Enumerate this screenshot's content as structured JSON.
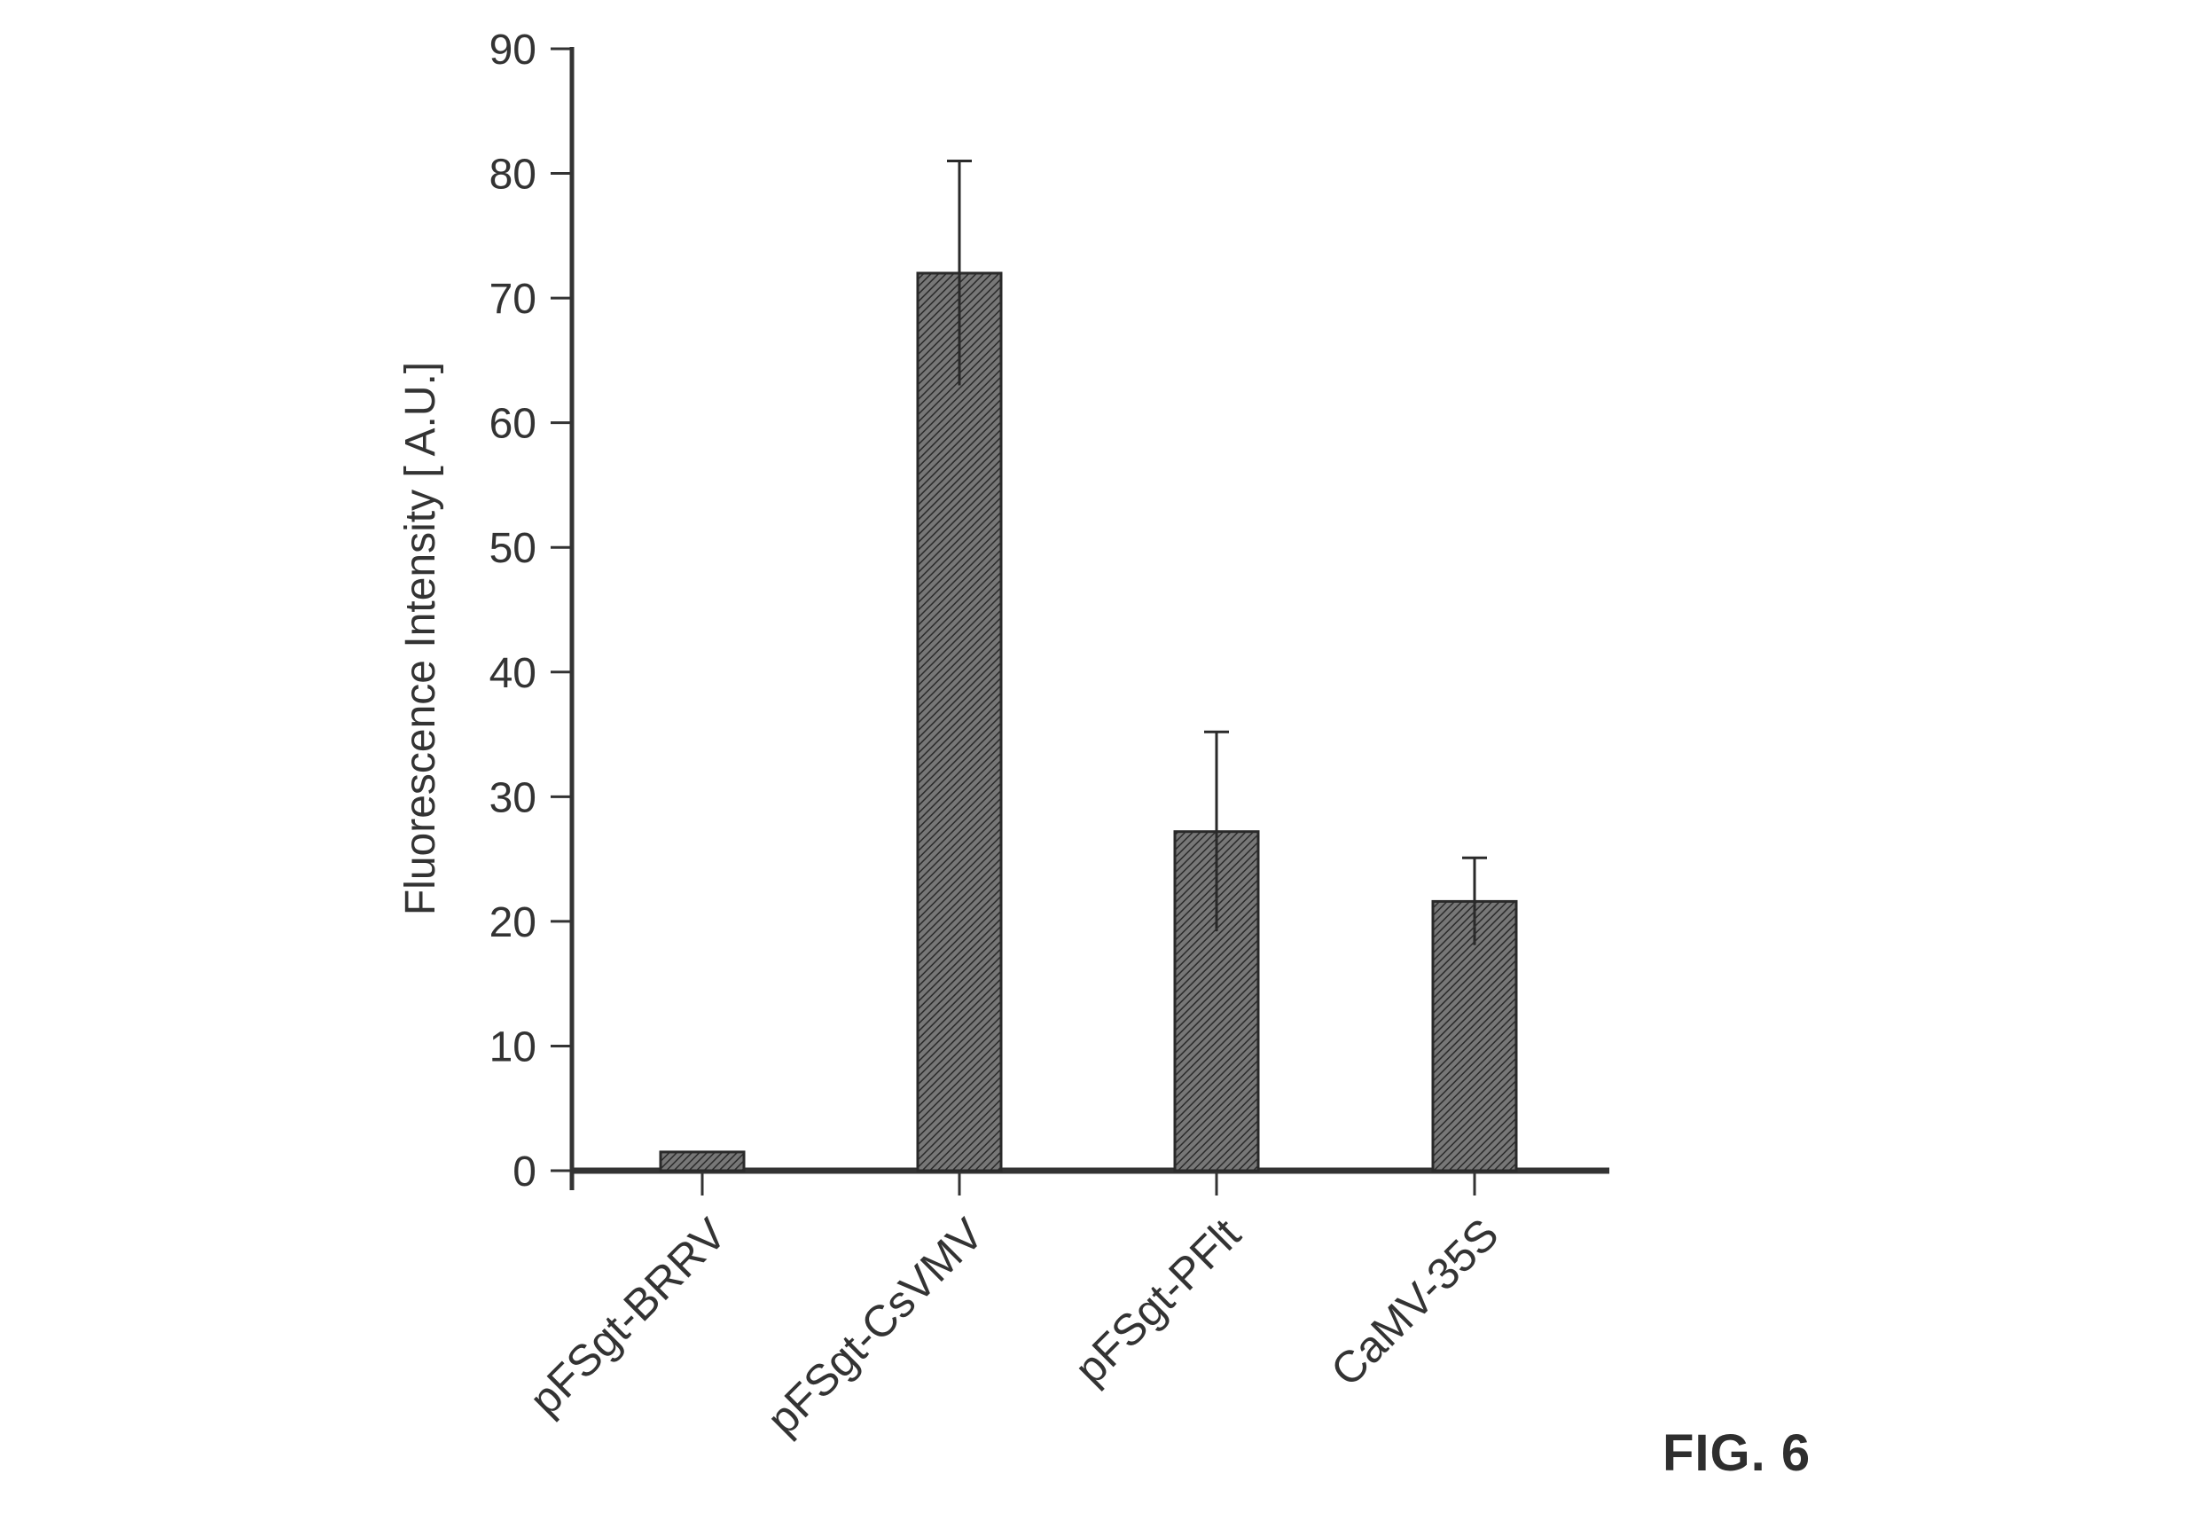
{
  "figure_label": "FIG. 6",
  "chart_data": {
    "type": "bar",
    "title": "",
    "xlabel": "",
    "ylabel": "Fluorescence Intensity [ A.U.]",
    "categories": [
      "pFSgt-BRRV",
      "pFSgt-CsVMV",
      "pFSgt-PFlt",
      "CaMV-35S"
    ],
    "values": [
      1.5,
      72,
      27.2,
      21.6
    ],
    "error": [
      0.2,
      9,
      8,
      3.5
    ],
    "ylim": [
      0,
      90
    ],
    "yticks": [
      0,
      10,
      20,
      30,
      40,
      50,
      60,
      70,
      80,
      90
    ],
    "grid": false,
    "legend": "none",
    "bar_fill": "#555555",
    "axis_color": "#333333"
  }
}
